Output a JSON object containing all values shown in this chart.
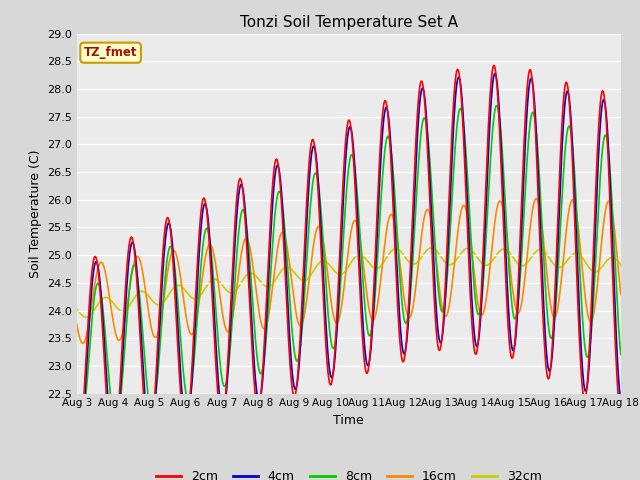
{
  "title": "Tonzi Soil Temperature Set A",
  "xlabel": "Time",
  "ylabel": "Soil Temperature (C)",
  "ylim": [
    22.5,
    29.0
  ],
  "yticks": [
    22.5,
    23.0,
    23.5,
    24.0,
    24.5,
    25.0,
    25.5,
    26.0,
    26.5,
    27.0,
    27.5,
    28.0,
    28.5,
    29.0
  ],
  "xtick_labels": [
    "Aug 3",
    "Aug 4",
    "Aug 5",
    "Aug 6",
    "Aug 7",
    "Aug 8",
    "Aug 9",
    "Aug 10",
    "Aug 11",
    "Aug 12",
    "Aug 13",
    "Aug 14",
    "Aug 15",
    "Aug 16",
    "Aug 17",
    "Aug 18"
  ],
  "legend_label": "TZ_fmet",
  "series_labels": [
    "2cm",
    "4cm",
    "8cm",
    "16cm",
    "32cm"
  ],
  "series_colors": [
    "#ff0000",
    "#0000cc",
    "#00cc00",
    "#ff8800",
    "#cccc00"
  ],
  "line_width": 1.2,
  "fig_bg_color": "#d8d8d8",
  "plot_bg_color": "#ebebeb",
  "grid_color": "#ffffff",
  "n_days": 15,
  "pts_per_day": 48
}
